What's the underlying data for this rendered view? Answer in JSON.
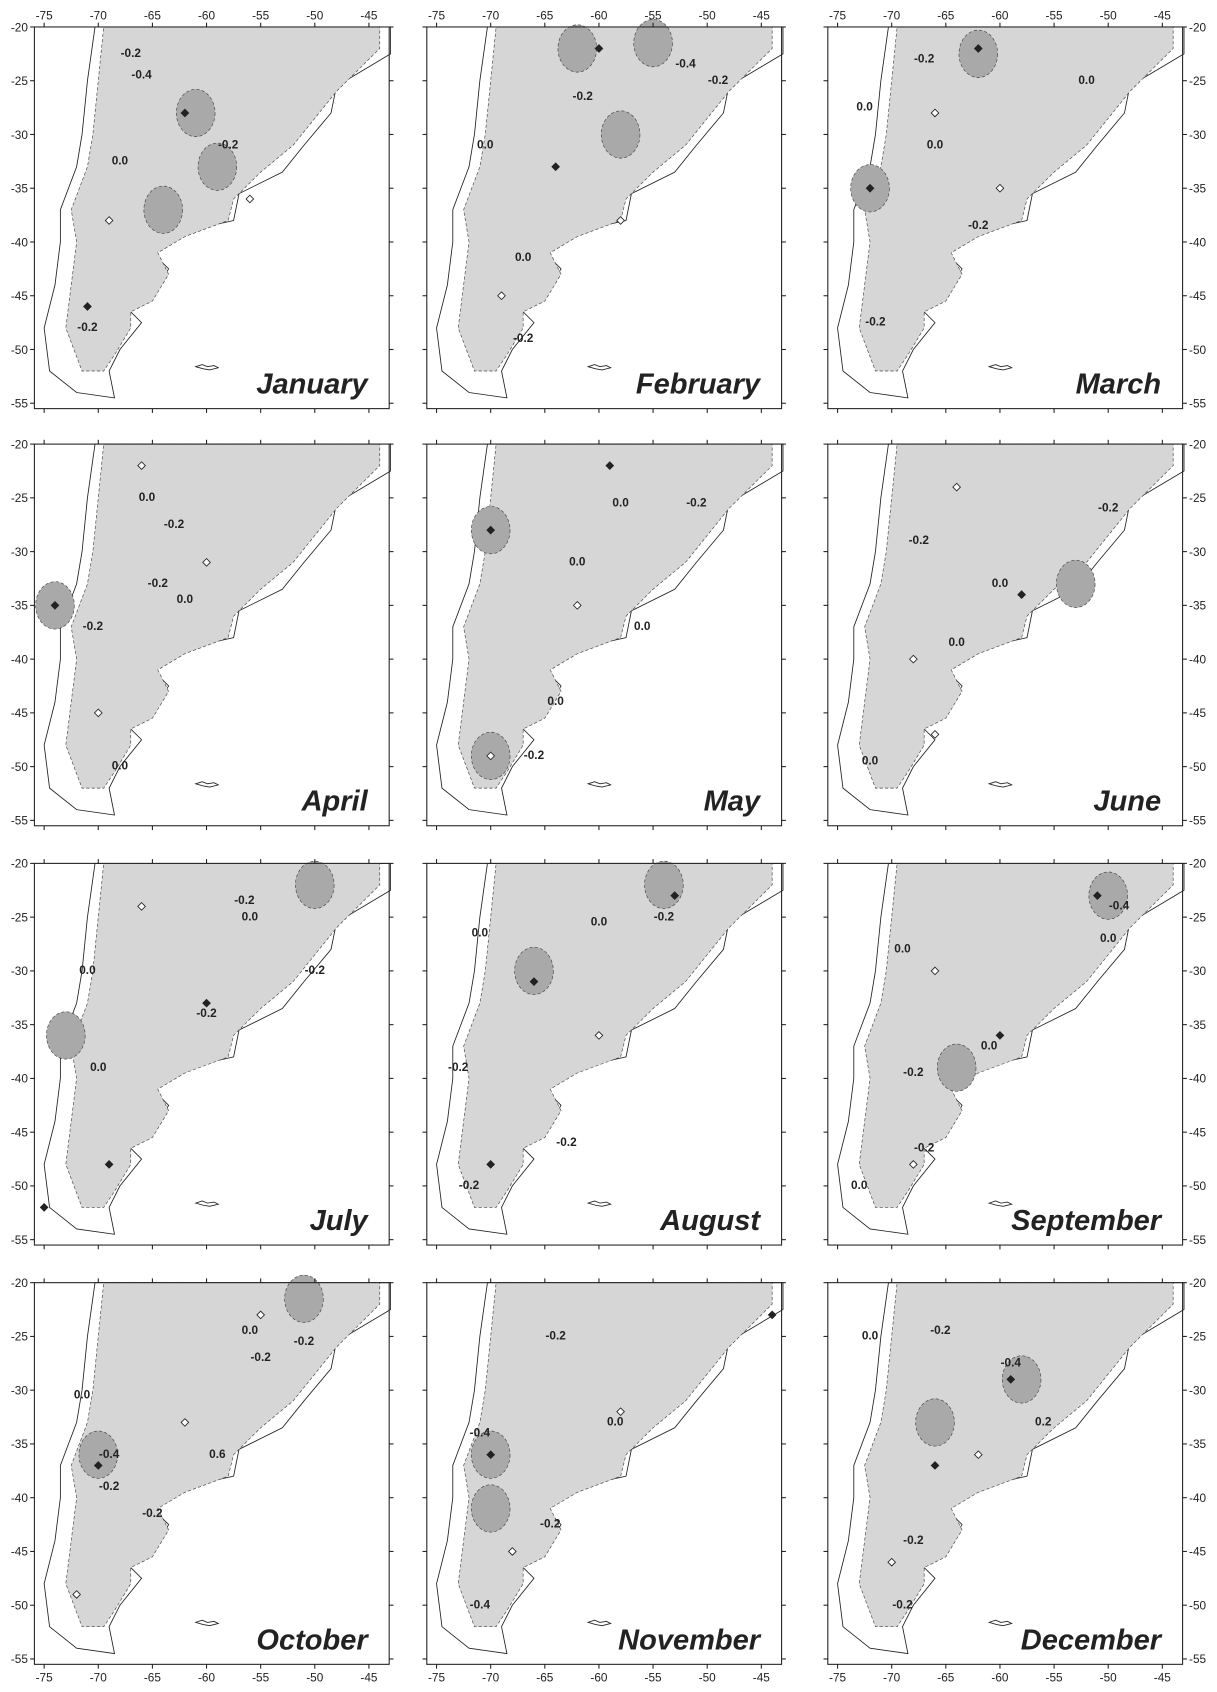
{
  "lon_ticks": [
    -75,
    -70,
    -65,
    -60,
    -55,
    -50,
    -45
  ],
  "lat_ticks": [
    -20,
    -25,
    -30,
    -35,
    -40,
    -45,
    -50,
    -55
  ],
  "panels": [
    {
      "month": "January",
      "contour_labels": [
        {
          "text": "-0.4",
          "lon": -66,
          "lat": -24.5
        },
        {
          "text": "-0.2",
          "lon": -67,
          "lat": -22.5
        },
        {
          "text": "0.0",
          "lon": -68,
          "lat": -32.5
        },
        {
          "text": "-0.2",
          "lon": -58,
          "lat": -31
        },
        {
          "text": "-0.2",
          "lon": -71,
          "lat": -48
        }
      ],
      "dark_zones": [
        {
          "lon": -61,
          "lat": -28
        },
        {
          "lon": -64,
          "lat": -37
        },
        {
          "lon": -59,
          "lat": -33
        }
      ],
      "stations": [
        {
          "lon": -62,
          "lat": -28,
          "filled": true
        },
        {
          "lon": -69,
          "lat": -38,
          "filled": false
        },
        {
          "lon": -56,
          "lat": -36,
          "filled": false
        },
        {
          "lon": -71,
          "lat": -46,
          "filled": true
        }
      ]
    },
    {
      "month": "February",
      "contour_labels": [
        {
          "text": "-0.4",
          "lon": -52,
          "lat": -23.5
        },
        {
          "text": "-0.2",
          "lon": -49,
          "lat": -25
        },
        {
          "text": "-0.2",
          "lon": -61.5,
          "lat": -26.5
        },
        {
          "text": "0.0",
          "lon": -70.5,
          "lat": -31
        },
        {
          "text": "0.0",
          "lon": -67,
          "lat": -41.5
        },
        {
          "text": "-0.2",
          "lon": -67,
          "lat": -49
        }
      ],
      "dark_zones": [
        {
          "lon": -55,
          "lat": -21.5
        },
        {
          "lon": -62,
          "lat": -22
        },
        {
          "lon": -58,
          "lat": -30
        }
      ],
      "stations": [
        {
          "lon": -60,
          "lat": -22,
          "filled": true
        },
        {
          "lon": -64,
          "lat": -33,
          "filled": true
        },
        {
          "lon": -58,
          "lat": -38,
          "filled": false
        },
        {
          "lon": -69,
          "lat": -45,
          "filled": false
        }
      ]
    },
    {
      "month": "March",
      "contour_labels": [
        {
          "text": "-0.2",
          "lon": -67,
          "lat": -23
        },
        {
          "text": "0.0",
          "lon": -52,
          "lat": -25
        },
        {
          "text": "0.0",
          "lon": -72.5,
          "lat": -27.5
        },
        {
          "text": "0.0",
          "lon": -66,
          "lat": -31
        },
        {
          "text": "-0.2",
          "lon": -62,
          "lat": -38.5
        },
        {
          "text": "-0.2",
          "lon": -71.5,
          "lat": -47.5
        }
      ],
      "dark_zones": [
        {
          "lon": -62,
          "lat": -22.5
        },
        {
          "lon": -72,
          "lat": -35
        }
      ],
      "stations": [
        {
          "lon": -62,
          "lat": -22,
          "filled": true
        },
        {
          "lon": -66,
          "lat": -28,
          "filled": false
        },
        {
          "lon": -60,
          "lat": -35,
          "filled": false
        },
        {
          "lon": -72,
          "lat": -35,
          "filled": true
        }
      ]
    },
    {
      "month": "April",
      "contour_labels": [
        {
          "text": "0.0",
          "lon": -65.5,
          "lat": -25
        },
        {
          "text": "-0.2",
          "lon": -63,
          "lat": -27.5
        },
        {
          "text": "-0.2",
          "lon": -64.5,
          "lat": -33
        },
        {
          "text": "0.0",
          "lon": -62,
          "lat": -34.5
        },
        {
          "text": "-0.2",
          "lon": -70.5,
          "lat": -37
        },
        {
          "text": "0.0",
          "lon": -68,
          "lat": -50
        }
      ],
      "dark_zones": [
        {
          "lon": -74,
          "lat": -35
        }
      ],
      "stations": [
        {
          "lon": -66,
          "lat": -22,
          "filled": false
        },
        {
          "lon": -60,
          "lat": -31,
          "filled": false
        },
        {
          "lon": -74,
          "lat": -35,
          "filled": true
        },
        {
          "lon": -70,
          "lat": -45,
          "filled": false
        }
      ]
    },
    {
      "month": "May",
      "contour_labels": [
        {
          "text": "0.0",
          "lon": -58,
          "lat": -25.5
        },
        {
          "text": "-0.2",
          "lon": -51,
          "lat": -25.5
        },
        {
          "text": "0.0",
          "lon": -62,
          "lat": -31
        },
        {
          "text": "0.0",
          "lon": -56,
          "lat": -37
        },
        {
          "text": "0.0",
          "lon": -64,
          "lat": -44
        },
        {
          "text": "-0.2",
          "lon": -66,
          "lat": -49
        }
      ],
      "dark_zones": [
        {
          "lon": -70,
          "lat": -28
        },
        {
          "lon": -70,
          "lat": -49
        }
      ],
      "stations": [
        {
          "lon": -59,
          "lat": -22,
          "filled": true
        },
        {
          "lon": -70,
          "lat": -28,
          "filled": true
        },
        {
          "lon": -62,
          "lat": -35,
          "filled": false
        },
        {
          "lon": -70,
          "lat": -49,
          "filled": false
        }
      ]
    },
    {
      "month": "June",
      "contour_labels": [
        {
          "text": "-0.2",
          "lon": -67.5,
          "lat": -29
        },
        {
          "text": "0.0",
          "lon": -60,
          "lat": -33
        },
        {
          "text": "-0.2",
          "lon": -50,
          "lat": -26
        },
        {
          "text": "0.0",
          "lon": -64,
          "lat": -38.5
        },
        {
          "text": "0.0",
          "lon": -72,
          "lat": -49.5
        }
      ],
      "dark_zones": [
        {
          "lon": -53,
          "lat": -33
        }
      ],
      "stations": [
        {
          "lon": -64,
          "lat": -24,
          "filled": false
        },
        {
          "lon": -58,
          "lat": -34,
          "filled": true
        },
        {
          "lon": -68,
          "lat": -40,
          "filled": false
        },
        {
          "lon": -66,
          "lat": -47,
          "filled": false
        }
      ]
    },
    {
      "month": "July",
      "contour_labels": [
        {
          "text": "0.0",
          "lon": -56,
          "lat": -25
        },
        {
          "text": "-0.2",
          "lon": -56.5,
          "lat": -23.5
        },
        {
          "text": "0.0",
          "lon": -71,
          "lat": -30
        },
        {
          "text": "-0.2",
          "lon": -60,
          "lat": -34
        },
        {
          "text": "0.0",
          "lon": -70,
          "lat": -39
        },
        {
          "text": "-0.2",
          "lon": -50,
          "lat": -30
        }
      ],
      "dark_zones": [
        {
          "lon": -50,
          "lat": -22
        },
        {
          "lon": -73,
          "lat": -36
        }
      ],
      "stations": [
        {
          "lon": -60,
          "lat": -33,
          "filled": true
        },
        {
          "lon": -66,
          "lat": -24,
          "filled": false
        },
        {
          "lon": -69,
          "lat": -48,
          "filled": true
        },
        {
          "lon": -75,
          "lat": -52,
          "filled": true
        }
      ]
    },
    {
      "month": "August",
      "contour_labels": [
        {
          "text": "0.0",
          "lon": -71,
          "lat": -26.5
        },
        {
          "text": "0.0",
          "lon": -60,
          "lat": -25.5
        },
        {
          "text": "-0.2",
          "lon": -54,
          "lat": -25
        },
        {
          "text": "-0.2",
          "lon": -73,
          "lat": -39
        },
        {
          "text": "-0.2",
          "lon": -63,
          "lat": -46
        },
        {
          "text": "-0.2",
          "lon": -72,
          "lat": -50
        }
      ],
      "dark_zones": [
        {
          "lon": -54,
          "lat": -22
        },
        {
          "lon": -66,
          "lat": -30
        }
      ],
      "stations": [
        {
          "lon": -53,
          "lat": -23,
          "filled": true
        },
        {
          "lon": -66,
          "lat": -31,
          "filled": true
        },
        {
          "lon": -60,
          "lat": -36,
          "filled": false
        },
        {
          "lon": -70,
          "lat": -48,
          "filled": true
        }
      ]
    },
    {
      "month": "September",
      "contour_labels": [
        {
          "text": "-0.4",
          "lon": -49,
          "lat": -24
        },
        {
          "text": "0.0",
          "lon": -50,
          "lat": -27
        },
        {
          "text": "0.0",
          "lon": -69,
          "lat": -28
        },
        {
          "text": "0.0",
          "lon": -61,
          "lat": -37
        },
        {
          "text": "-0.2",
          "lon": -68,
          "lat": -39.5
        },
        {
          "text": "-0.2",
          "lon": -67,
          "lat": -46.5
        },
        {
          "text": "0.0",
          "lon": -73,
          "lat": -50
        }
      ],
      "dark_zones": [
        {
          "lon": -50,
          "lat": -23
        },
        {
          "lon": -64,
          "lat": -39
        }
      ],
      "stations": [
        {
          "lon": -51,
          "lat": -23,
          "filled": true
        },
        {
          "lon": -60,
          "lat": -36,
          "filled": true
        },
        {
          "lon": -66,
          "lat": -30,
          "filled": false
        },
        {
          "lon": -68,
          "lat": -48,
          "filled": false
        }
      ]
    },
    {
      "month": "October",
      "contour_labels": [
        {
          "text": "0.0",
          "lon": -56,
          "lat": -24.5
        },
        {
          "text": "-0.2",
          "lon": -51,
          "lat": -25.5
        },
        {
          "text": "-0.2",
          "lon": -55,
          "lat": -27
        },
        {
          "text": "0.0",
          "lon": -71.5,
          "lat": -30.5
        },
        {
          "text": "-0.4",
          "lon": -69,
          "lat": -36
        },
        {
          "text": "-0.2",
          "lon": -69,
          "lat": -39
        },
        {
          "text": "0.6",
          "lon": -59,
          "lat": -36
        },
        {
          "text": "-0.2",
          "lon": -65,
          "lat": -41.5
        }
      ],
      "dark_zones": [
        {
          "lon": -51,
          "lat": -21.5
        },
        {
          "lon": -70,
          "lat": -36
        }
      ],
      "stations": [
        {
          "lon": -55,
          "lat": -23,
          "filled": false
        },
        {
          "lon": -70,
          "lat": -37,
          "filled": true
        },
        {
          "lon": -62,
          "lat": -33,
          "filled": false
        },
        {
          "lon": -72,
          "lat": -49,
          "filled": false
        }
      ]
    },
    {
      "month": "November",
      "contour_labels": [
        {
          "text": "-0.2",
          "lon": -64,
          "lat": -25
        },
        {
          "text": "-0.4",
          "lon": -71,
          "lat": -34
        },
        {
          "text": "-0.2",
          "lon": -64.5,
          "lat": -42.5
        },
        {
          "text": "0.0",
          "lon": -58.5,
          "lat": -33
        },
        {
          "text": "-0.4",
          "lon": -71,
          "lat": -50
        }
      ],
      "dark_zones": [
        {
          "lon": -70,
          "lat": -36
        },
        {
          "lon": -70,
          "lat": -41
        }
      ],
      "stations": [
        {
          "lon": -44,
          "lat": -23,
          "filled": true
        },
        {
          "lon": -70,
          "lat": -36,
          "filled": true
        },
        {
          "lon": -58,
          "lat": -32,
          "filled": false
        },
        {
          "lon": -68,
          "lat": -45,
          "filled": false
        }
      ]
    },
    {
      "month": "December",
      "contour_labels": [
        {
          "text": "0.0",
          "lon": -72,
          "lat": -25
        },
        {
          "text": "-0.2",
          "lon": -65.5,
          "lat": -24.5
        },
        {
          "text": "-0.4",
          "lon": -59,
          "lat": -27.5
        },
        {
          "text": "0.2",
          "lon": -56,
          "lat": -33
        },
        {
          "text": "-0.2",
          "lon": -68,
          "lat": -44
        },
        {
          "text": "-0.2",
          "lon": -69,
          "lat": -50
        }
      ],
      "dark_zones": [
        {
          "lon": -66,
          "lat": -33
        },
        {
          "lon": -58,
          "lat": -29
        }
      ],
      "stations": [
        {
          "lon": -59,
          "lat": -29,
          "filled": true
        },
        {
          "lon": -66,
          "lat": -37,
          "filled": true
        },
        {
          "lon": -62,
          "lat": -36,
          "filled": false
        },
        {
          "lon": -70,
          "lat": -46,
          "filled": false
        }
      ]
    }
  ]
}
